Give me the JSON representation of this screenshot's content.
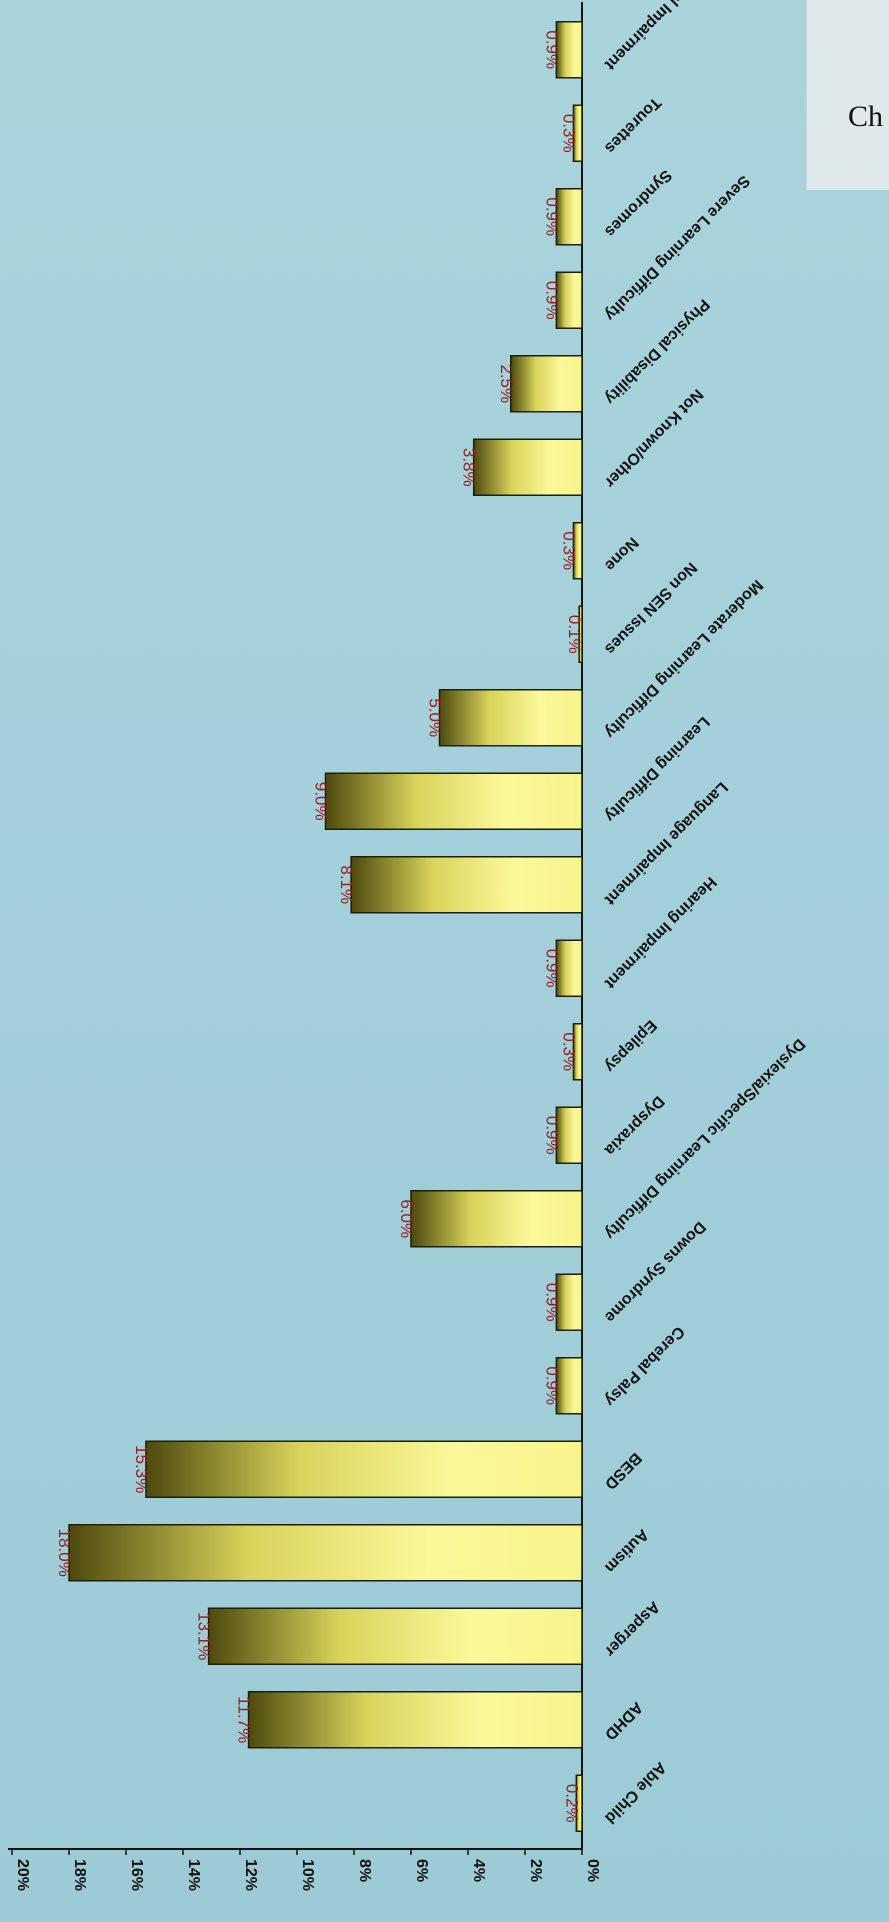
{
  "chart_title": "Ch",
  "colors": {
    "bar_light": "#f7f48c",
    "bar_mid": "#d8d35a",
    "bar_dark": "#5f5c14",
    "bar_stroke": "#1e1e0a",
    "label_color": "#9b1b1b",
    "axis_color": "#111111"
  },
  "chart_data": {
    "type": "bar",
    "orientation": "vertical-bars, image rotated 90deg clockwise",
    "categories": [
      "Able Child",
      "ADHD",
      "Asperger",
      "Autism",
      "BESD",
      "Cerebal Palsy",
      "Downs Syndrome",
      "Dyslexia/Specific Learning Difficulty",
      "Dyspraxia",
      "Epilepsy",
      "Hearing Impairment",
      "Language Impairment",
      "Learning Difficulty",
      "Moderate Learning Difficulty",
      "Non SEN Issues",
      "None",
      "Not Known/Other",
      "Physical Disability",
      "Severe Learning Difficulty",
      "Syndromes",
      "Tourettes",
      "Visual Impairment"
    ],
    "values": [
      0.2,
      11.7,
      13.1,
      18.0,
      15.3,
      0.9,
      0.9,
      6.0,
      0.9,
      0.3,
      0.9,
      8.1,
      9.0,
      5.0,
      0.1,
      0.3,
      3.8,
      2.5,
      0.9,
      0.9,
      0.3,
      0.9
    ],
    "data_labels": [
      "0.2%",
      "11.7%",
      "13.1%",
      "18.0%",
      "15.3%",
      "0.9%",
      "0.9%",
      "6.0%",
      "0.9%",
      "0.3%",
      "0.9%",
      "8.1%",
      "9.0%",
      "5.0%",
      "0.1%",
      "0.3%",
      "3.8%",
      "2.5%",
      "0.9%",
      "0.9%",
      "0.3%",
      "0.9%"
    ],
    "y_ticks": [
      "0%",
      "2%",
      "4%",
      "6%",
      "8%",
      "10%",
      "12%",
      "14%",
      "16%",
      "18%",
      "20%"
    ],
    "ylim": [
      0,
      20
    ],
    "xlabel": "",
    "ylabel": "",
    "grid": false,
    "legend": "none"
  }
}
